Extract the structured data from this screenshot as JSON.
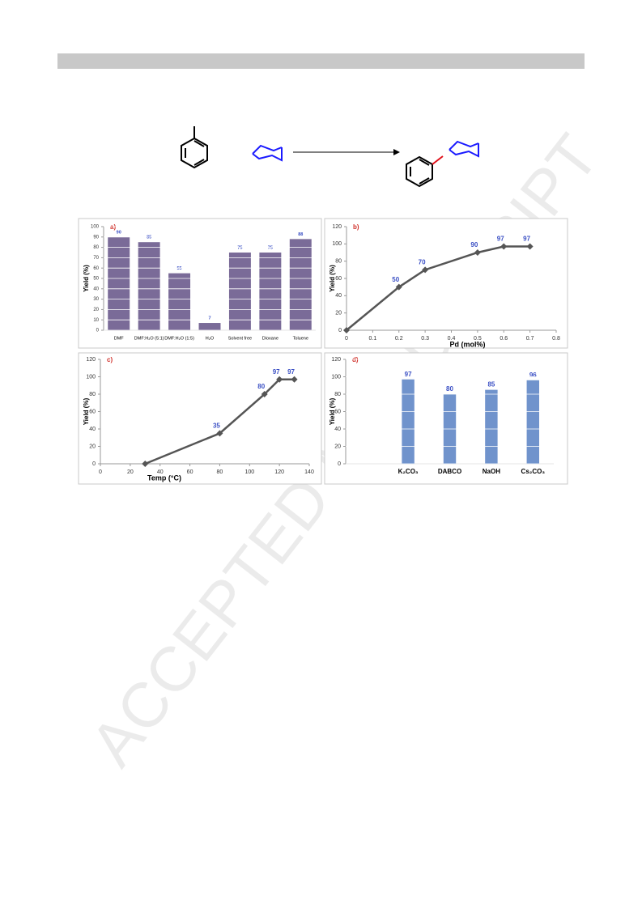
{
  "watermark": "ACCEPTED MANUSCRIPT",
  "chart_data": [
    {
      "type": "bar",
      "title": "a)",
      "y_label": "Yield (%)",
      "categories": [
        "DMF",
        "DMF:H₂O (5:1)",
        "DMF:H₂O (1:5)",
        "H₂O",
        "Solvent free",
        "Dioxane",
        "Toluene"
      ],
      "values": [
        90,
        85,
        55,
        7,
        75,
        75,
        88
      ],
      "color": "#7a6b98",
      "ylim": [
        0,
        100
      ],
      "yticks": [
        0,
        10,
        20,
        30,
        40,
        50,
        60,
        70,
        80,
        90,
        100
      ],
      "grid": true
    },
    {
      "type": "line",
      "title": "b)",
      "x_label": "Pd (mol%)",
      "y_label": "Yield (%)",
      "x": [
        0,
        0.2,
        0.3,
        0.5,
        0.6,
        0.7
      ],
      "values": [
        0,
        50,
        70,
        90,
        97,
        97
      ],
      "value_labels": [
        null,
        "50",
        "70",
        "90",
        "97",
        "97"
      ],
      "color": "#555555",
      "xlim": [
        0,
        0.8
      ],
      "xticks": [
        0,
        0.1,
        0.2,
        0.3,
        0.4,
        0.5,
        0.6,
        0.7,
        0.8
      ],
      "ylim": [
        0,
        120
      ],
      "yticks": [
        0,
        20,
        40,
        60,
        80,
        100,
        120
      ],
      "grid": false
    },
    {
      "type": "line",
      "title": "c)",
      "x_label": "Temp (°C)",
      "y_label": "Yield (%)",
      "x": [
        30,
        80,
        110,
        120,
        130
      ],
      "values": [
        0,
        35,
        80,
        97,
        97
      ],
      "value_labels": [
        null,
        "35",
        "80",
        "97",
        "97"
      ],
      "color": "#555555",
      "xlim": [
        0,
        140
      ],
      "xticks": [
        0,
        20,
        40,
        60,
        80,
        100,
        120,
        140
      ],
      "ylim": [
        0,
        120
      ],
      "yticks": [
        0,
        20,
        40,
        60,
        80,
        100,
        120
      ],
      "grid": false
    },
    {
      "type": "bar",
      "title": "d)",
      "y_label": "Yield (%)",
      "categories": [
        null,
        "K₂CO₃",
        "DABCO",
        "NaOH",
        "Cs₂CO₃"
      ],
      "values": [
        null,
        97,
        80,
        85,
        96
      ],
      "color": "#7093cc",
      "ylim": [
        0,
        120
      ],
      "yticks": [
        0,
        20,
        40,
        60,
        80,
        100,
        120
      ],
      "grid": true
    }
  ]
}
